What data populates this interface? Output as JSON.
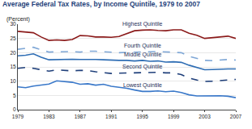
{
  "chart_data": {
    "type": "line",
    "title": "Average Federal Tax Rates, by Income Quintile, 1979 to 2007",
    "y_label": "(Percent)",
    "x": [
      1979,
      1980,
      1981,
      1982,
      1983,
      1984,
      1985,
      1986,
      1987,
      1988,
      1989,
      1990,
      1991,
      1992,
      1993,
      1994,
      1995,
      1996,
      1997,
      1998,
      1999,
      2000,
      2001,
      2002,
      2003,
      2004,
      2005,
      2006,
      2007
    ],
    "xlim": [
      1979,
      2007
    ],
    "xticks": [
      1979,
      1983,
      1987,
      1991,
      1995,
      1999,
      2003,
      2007
    ],
    "ylim": [
      0,
      30
    ],
    "yticks": [
      0,
      5,
      10,
      15,
      20,
      25,
      30
    ],
    "grid": true,
    "series": [
      {
        "name": "Highest Quintile",
        "color": "#8b1a1a",
        "line_style": "solid",
        "values": [
          27.5,
          27.3,
          27.0,
          25.5,
          24.3,
          24.5,
          24.3,
          24.6,
          26.0,
          25.9,
          25.5,
          25.5,
          25.4,
          25.7,
          26.8,
          27.7,
          27.9,
          28.0,
          27.8,
          27.7,
          28.0,
          28.0,
          26.8,
          26.1,
          25.0,
          25.2,
          25.6,
          25.8,
          25.0
        ]
      },
      {
        "name": "Fourth Quintile",
        "color": "#7fa7d6",
        "line_style": "dash",
        "values": [
          21.2,
          21.6,
          21.9,
          21.0,
          20.2,
          20.3,
          20.4,
          20.4,
          20.2,
          20.5,
          20.5,
          20.3,
          20.2,
          20.0,
          20.1,
          20.1,
          20.3,
          20.3,
          20.4,
          20.3,
          20.3,
          20.0,
          18.7,
          18.0,
          17.3,
          17.2,
          17.4,
          17.6,
          17.4
        ]
      },
      {
        "name": "Middle Quintile",
        "color": "#2e6db4",
        "line_style": "solid",
        "values": [
          18.9,
          19.1,
          19.6,
          18.4,
          17.5,
          17.6,
          17.6,
          17.7,
          17.6,
          17.7,
          17.6,
          17.5,
          17.3,
          17.3,
          17.3,
          17.1,
          17.3,
          17.0,
          17.1,
          16.7,
          16.8,
          16.6,
          15.6,
          14.8,
          14.0,
          14.1,
          14.3,
          14.3,
          14.3
        ]
      },
      {
        "name": "Second Quintile",
        "color": "#1f3f7a",
        "line_style": "dash",
        "values": [
          14.5,
          14.8,
          14.5,
          14.0,
          13.5,
          14.0,
          13.8,
          13.6,
          13.8,
          13.7,
          13.3,
          13.1,
          12.7,
          12.8,
          12.9,
          13.0,
          13.1,
          13.0,
          13.1,
          12.9,
          12.9,
          12.3,
          11.1,
          10.4,
          9.9,
          10.0,
          10.1,
          10.4,
          10.6
        ]
      },
      {
        "name": "Lowest Quintile",
        "color": "#3a78c9",
        "line_style": "solid",
        "values": [
          8.0,
          7.7,
          8.3,
          8.7,
          9.0,
          10.1,
          9.8,
          9.6,
          8.9,
          9.1,
          8.6,
          8.9,
          8.2,
          7.9,
          7.5,
          6.9,
          6.4,
          6.4,
          6.6,
          6.3,
          6.5,
          6.0,
          5.2,
          4.8,
          4.9,
          4.8,
          4.9,
          4.7,
          4.2
        ]
      }
    ]
  }
}
